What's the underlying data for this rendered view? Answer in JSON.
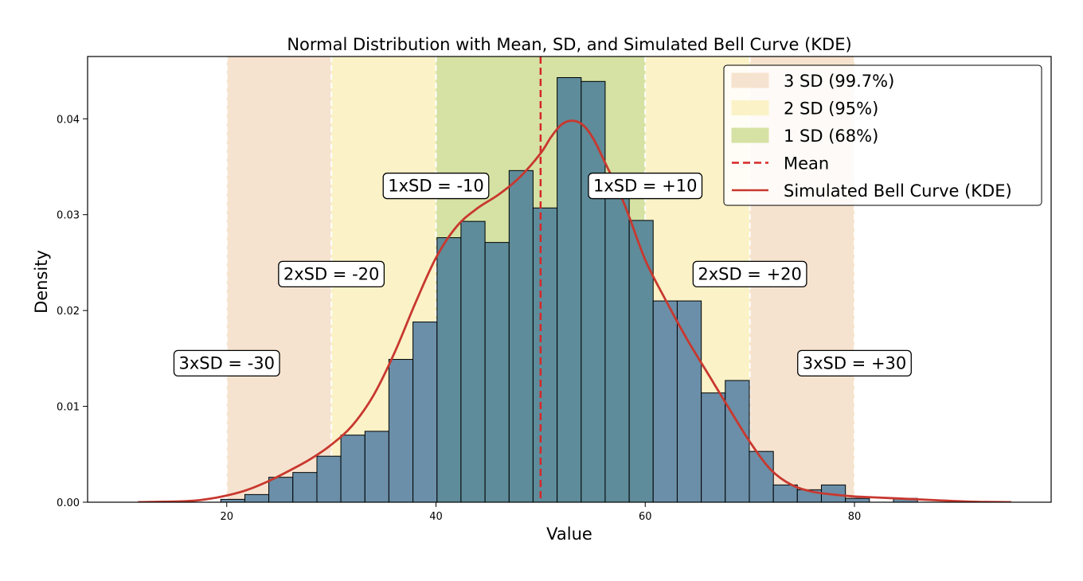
{
  "chart_data": {
    "type": "bar",
    "title": "Normal Distribution with Mean, SD, and Simulated Bell Curve (KDE)",
    "xlabel": "Value",
    "ylabel": "Density",
    "xlim": [
      6.7,
      98.8
    ],
    "ylim": [
      0,
      0.0465
    ],
    "xticks": [
      20,
      40,
      60,
      80
    ],
    "yticks": [
      0.0,
      0.01,
      0.02,
      0.03,
      0.04
    ],
    "ytick_labels": [
      "0.00",
      "0.01",
      "0.02",
      "0.03",
      "0.04"
    ],
    "mean": 50,
    "sd": 10,
    "colors": {
      "bars": "#6b8fa8",
      "bars_overlap": "#5e8c9a",
      "bar_edge": "#000000",
      "band_3sd": "#f6e3cf",
      "band_2sd": "#fbf2c7",
      "band_1sd": "#d5e2a4",
      "mean_line": "#d62728",
      "kde": "#c8382f",
      "sd_line": "#ffffff"
    },
    "bands": [
      {
        "name": "3 SD (99.7%)",
        "from": 20,
        "to": 80,
        "color": "#f6e3cf"
      },
      {
        "name": "2 SD (95%)",
        "from": 30,
        "to": 70,
        "color": "#fbf2c7"
      },
      {
        "name": "1 SD (68%)",
        "from": 40,
        "to": 60,
        "color": "#d5e2a4"
      }
    ],
    "sd_lines": [
      20,
      30,
      40,
      60,
      70,
      80
    ],
    "histogram": {
      "bin_edges": [
        19.43,
        21.73,
        24.02,
        26.32,
        28.62,
        30.91,
        33.21,
        35.5,
        37.8,
        40.1,
        42.39,
        44.69,
        46.99,
        49.28,
        51.58,
        53.88,
        56.17,
        58.47,
        60.76,
        63.06,
        65.36,
        67.65,
        69.95,
        72.25,
        74.54,
        76.84,
        79.14,
        81.43,
        83.73,
        86.02
      ],
      "values": [
        0.0003,
        0.0008,
        0.0026,
        0.0031,
        0.0048,
        0.007,
        0.0074,
        0.0149,
        0.0188,
        0.0276,
        0.0293,
        0.0271,
        0.0346,
        0.0307,
        0.0443,
        0.0439,
        0.033,
        0.0294,
        0.021,
        0.021,
        0.0114,
        0.0127,
        0.0053,
        0.0018,
        0.0013,
        0.0018,
        0.0004,
        0.0,
        0.0004
      ]
    },
    "kde": {
      "name": "Simulated Bell Curve (KDE)",
      "x": [
        11.5,
        14,
        16,
        18,
        20,
        22,
        24,
        26,
        28,
        30,
        32,
        34,
        36,
        38,
        40,
        42,
        44,
        46,
        48,
        50,
        51,
        52,
        53,
        54,
        55,
        56,
        58,
        60,
        62,
        64,
        66,
        68,
        70,
        72,
        74,
        76,
        78,
        80,
        82,
        84,
        86,
        88,
        90,
        92,
        95
      ],
      "y": [
        0.0,
        5e-05,
        0.0001,
        0.0003,
        0.0007,
        0.0013,
        0.0022,
        0.0033,
        0.0045,
        0.006,
        0.008,
        0.0111,
        0.0155,
        0.0207,
        0.0255,
        0.0288,
        0.0307,
        0.0321,
        0.0339,
        0.0364,
        0.0381,
        0.0394,
        0.0398,
        0.0394,
        0.038,
        0.0358,
        0.0311,
        0.0253,
        0.021,
        0.017,
        0.0134,
        0.0098,
        0.0063,
        0.0034,
        0.0018,
        0.0011,
        0.0008,
        0.0006,
        0.0005,
        0.0004,
        0.0003,
        0.0002,
        0.0001,
        3e-05,
        0.0
      ]
    },
    "sd_annotations": [
      {
        "text": "3xSD = -30",
        "x": 20,
        "y": 0.0145
      },
      {
        "text": "2xSD = -20",
        "x": 30,
        "y": 0.0238
      },
      {
        "text": "1xSD = -10",
        "x": 40,
        "y": 0.033
      },
      {
        "text": "1xSD = +10",
        "x": 60,
        "y": 0.033
      },
      {
        "text": "2xSD = +20",
        "x": 70,
        "y": 0.0238
      },
      {
        "text": "3xSD = +30",
        "x": 80,
        "y": 0.0145
      }
    ],
    "legend": {
      "placement": "top-right",
      "entries": [
        {
          "label": "3 SD (99.7%)",
          "kind": "patch",
          "color": "#f6e3cf"
        },
        {
          "label": "2 SD (95%)",
          "kind": "patch",
          "color": "#fbf2c7"
        },
        {
          "label": "1 SD (68%)",
          "kind": "patch",
          "color": "#d5e2a4"
        },
        {
          "label": "Mean",
          "kind": "dashed",
          "color": "#d62728"
        },
        {
          "label": "Simulated Bell Curve (KDE)",
          "kind": "line",
          "color": "#c8382f"
        }
      ]
    }
  }
}
